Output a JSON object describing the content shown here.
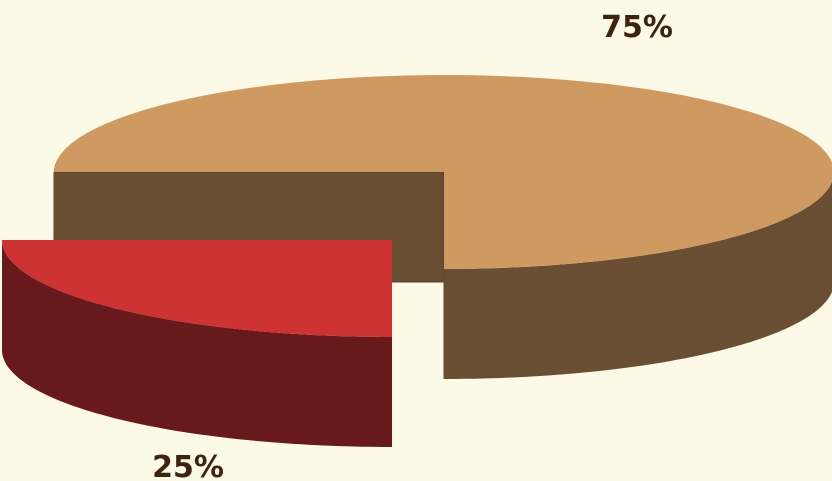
{
  "chart_data": {
    "type": "pie",
    "categories": [
      "",
      ""
    ],
    "values": [
      75,
      25
    ],
    "labels": [
      "75%",
      "25%"
    ],
    "colors": {
      "top": [
        "#CE9A62",
        "#CD3333"
      ],
      "side": [
        "#694E33",
        "#67191B"
      ]
    },
    "exploded": [
      false,
      true
    ],
    "style": "3d"
  }
}
